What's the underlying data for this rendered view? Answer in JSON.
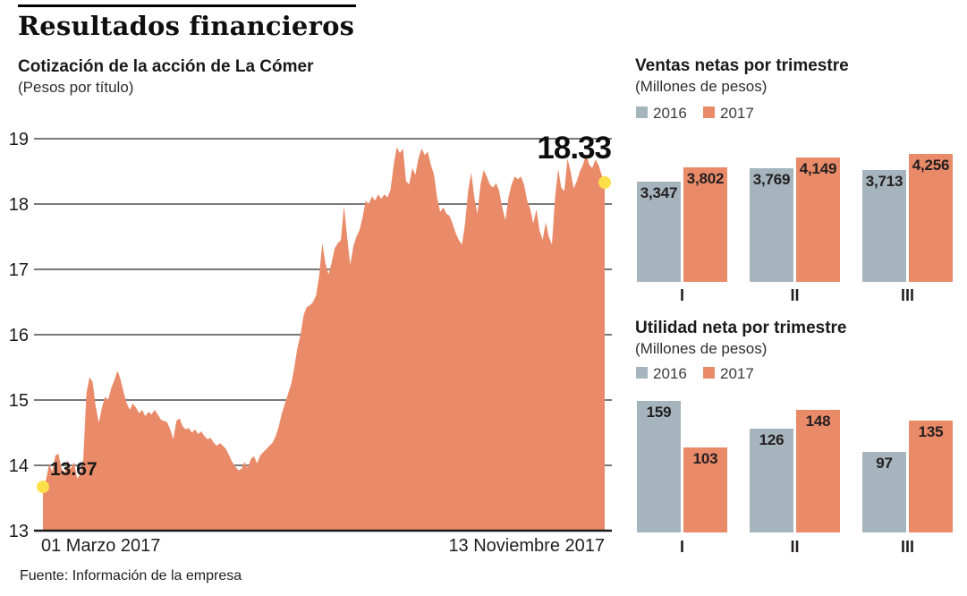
{
  "header": {
    "title": "Resultados financieros"
  },
  "footer": {
    "source": "Fuente: Información de la empresa"
  },
  "colors": {
    "area_2017": "#E98A68",
    "bars_2016": "#A5B4BD",
    "bars_2017": "#E98A68",
    "marker_yellow": "#FFE04A",
    "gridline": "#4D4D4D",
    "axis": "#1A1A1A",
    "text": "#231F20"
  },
  "chart_data": [
    {
      "id": "cotizacion",
      "type": "area",
      "title": "Cotización de la acción de La Cómer",
      "unit": "(Pesos por título)",
      "ylim": [
        13,
        19
      ],
      "y_ticks": [
        "19",
        "18",
        "17",
        "16",
        "15",
        "14",
        "13"
      ],
      "x_start_label": "01 Marzo 2017",
      "x_end_label": "13 Noviembre 2017",
      "start_annotation": "13.67",
      "end_annotation": "18.33",
      "start_value": 13.67,
      "end_value": 18.33,
      "values": [
        13.67,
        13.78,
        14.02,
        13.9,
        14.15,
        14.18,
        13.95,
        13.88,
        14.08,
        13.95,
        14.05,
        13.8,
        13.86,
        14.1,
        15.1,
        15.35,
        15.28,
        14.9,
        14.65,
        14.88,
        15.05,
        15.0,
        15.18,
        15.3,
        15.45,
        15.32,
        15.12,
        14.95,
        14.85,
        14.95,
        14.88,
        14.8,
        14.85,
        14.75,
        14.82,
        14.78,
        14.85,
        14.78,
        14.7,
        14.68,
        14.66,
        14.55,
        14.4,
        14.68,
        14.72,
        14.6,
        14.55,
        14.57,
        14.5,
        14.55,
        14.48,
        14.52,
        14.45,
        14.4,
        14.42,
        14.35,
        14.3,
        14.34,
        14.3,
        14.25,
        14.15,
        14.05,
        13.98,
        13.92,
        13.95,
        14.05,
        13.96,
        14.1,
        14.14,
        14.03,
        14.15,
        14.2,
        14.25,
        14.3,
        14.35,
        14.45,
        14.6,
        14.8,
        14.95,
        15.1,
        15.25,
        15.5,
        15.8,
        16.0,
        16.3,
        16.42,
        16.45,
        16.5,
        16.6,
        16.9,
        17.4,
        17.1,
        16.92,
        17.1,
        17.32,
        17.4,
        17.45,
        17.97,
        17.5,
        17.07,
        17.35,
        17.5,
        17.6,
        17.8,
        18.05,
        18.0,
        18.12,
        18.05,
        18.15,
        18.08,
        18.15,
        18.1,
        18.22,
        18.6,
        18.87,
        18.78,
        18.85,
        18.35,
        18.3,
        18.55,
        18.45,
        18.7,
        18.85,
        18.75,
        18.8,
        18.6,
        18.45,
        18.1,
        17.88,
        17.95,
        17.85,
        17.82,
        17.7,
        17.55,
        17.45,
        17.38,
        17.7,
        18.2,
        18.48,
        18.1,
        17.85,
        18.3,
        18.52,
        18.42,
        18.3,
        18.25,
        18.32,
        18.2,
        17.95,
        17.75,
        18.1,
        18.3,
        18.42,
        18.38,
        18.42,
        18.3,
        18.05,
        17.93,
        17.7,
        17.92,
        17.6,
        17.45,
        17.72,
        17.5,
        17.38,
        18.1,
        18.54,
        18.25,
        18.2,
        18.7,
        18.5,
        18.24,
        18.35,
        18.5,
        18.6,
        18.77,
        18.6,
        18.55,
        18.68,
        18.6,
        18.45,
        18.33
      ]
    },
    {
      "id": "ventas",
      "type": "bar",
      "title": "Ventas netas por trimestre",
      "unit": "(Millones de pesos)",
      "legend": [
        "2016",
        "2017"
      ],
      "categories": [
        "I",
        "II",
        "III"
      ],
      "series": [
        {
          "name": "2016",
          "values": [
            3347,
            3769,
            3713
          ],
          "labels": [
            "3,347",
            "3,769",
            "3,713"
          ]
        },
        {
          "name": "2017",
          "values": [
            3802,
            4149,
            4256
          ],
          "labels": [
            "3,802",
            "4,149",
            "4,256"
          ]
        }
      ],
      "ylim": [
        0,
        4256
      ]
    },
    {
      "id": "utilidad",
      "type": "bar",
      "title": "Utilidad neta por trimestre",
      "unit": "(Millones de pesos)",
      "legend": [
        "2016",
        "2017"
      ],
      "categories": [
        "I",
        "II",
        "III"
      ],
      "series": [
        {
          "name": "2016",
          "values": [
            159,
            126,
            97
          ],
          "labels": [
            "159",
            "126",
            "97"
          ]
        },
        {
          "name": "2017",
          "values": [
            103,
            148,
            135
          ],
          "labels": [
            "103",
            "148",
            "135"
          ]
        }
      ],
      "ylim": [
        0,
        159
      ]
    }
  ]
}
